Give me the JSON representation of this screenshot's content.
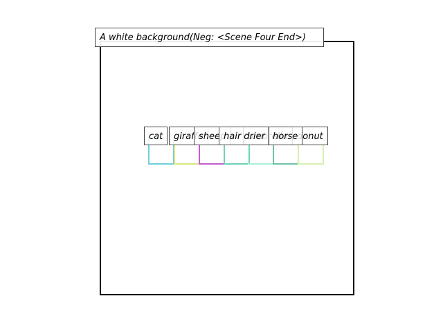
{
  "caption": "A white background(Neg: <Scene Four End>)",
  "objects": [
    {
      "label": "cat",
      "color": "#6fd0dc"
    },
    {
      "label": "giraffe",
      "color": "#d8e67f"
    },
    {
      "label": "sheep",
      "color": "#c45ad0"
    },
    {
      "label": "hair drier",
      "color": "#6fd2b8"
    },
    {
      "label": "umbrella",
      "color": "#a8f0d4"
    },
    {
      "label": "horse",
      "color": "#6fc0a8"
    },
    {
      "label": "donut",
      "color": "#d6f0b0"
    }
  ]
}
